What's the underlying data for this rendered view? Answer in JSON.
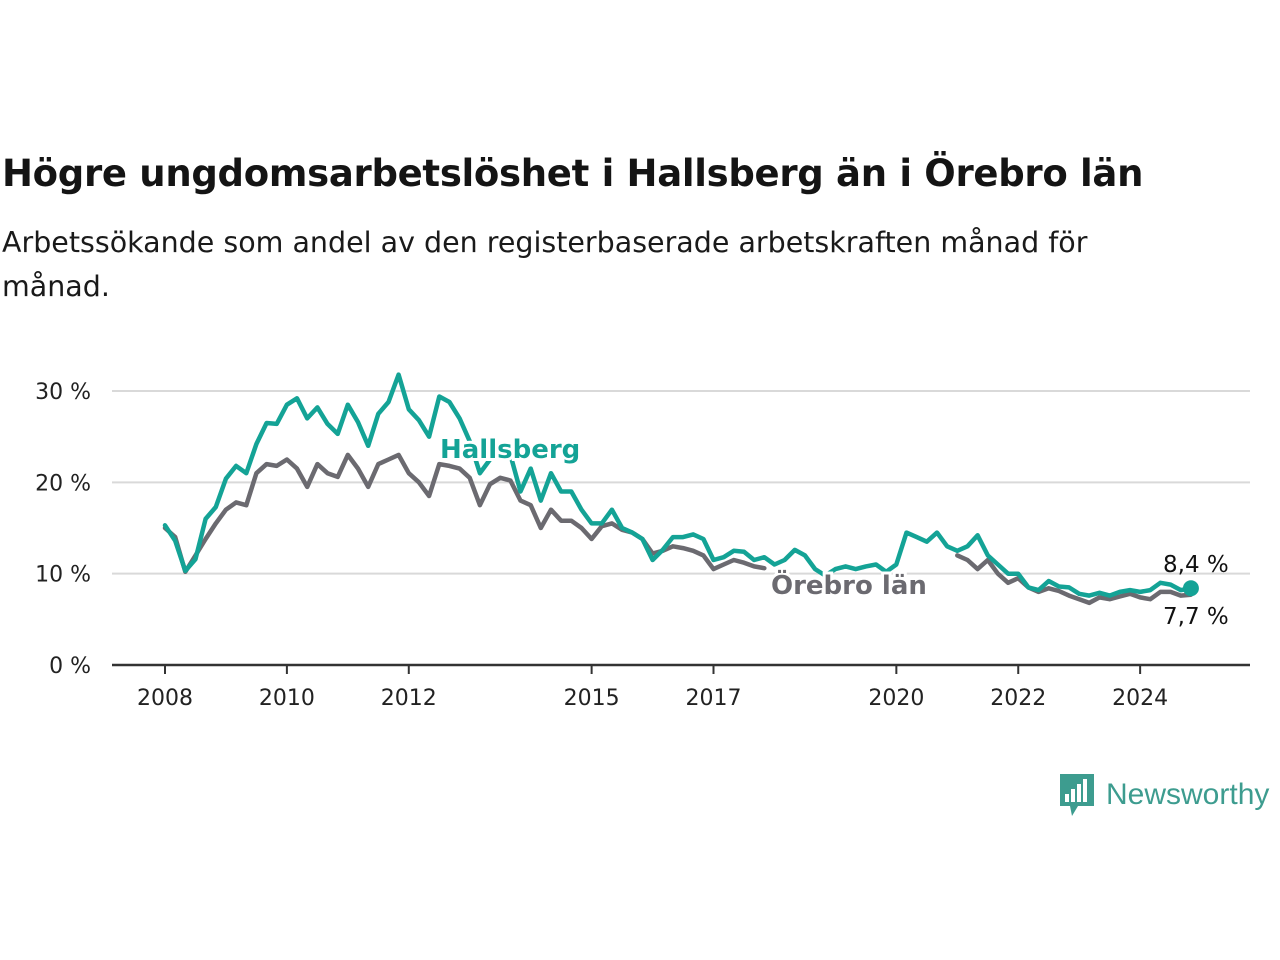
{
  "title": "Högre ungdomsarbetslöshet i Hallsberg än i Örebro län",
  "subtitle": "Arbetssökande som andel av den registerbaserade arbetskraften månad för månad.",
  "brand": {
    "name": "Newsworthy",
    "color": "#3d9c8f",
    "icon": "newsworthy-bar-chart-icon"
  },
  "chart_data": {
    "type": "line",
    "x_ticks": [
      "2008",
      "2010",
      "2012",
      "2015",
      "2017",
      "2020",
      "2022",
      "2024"
    ],
    "y_ticks": [
      "0 %",
      "10 %",
      "20 %",
      "30 %"
    ],
    "ylim": [
      0,
      30
    ],
    "xlim": [
      "2008-01",
      "2024-12"
    ],
    "grid": true,
    "series": [
      {
        "name": "Hallsberg",
        "color": "#14a396",
        "end_label": "8,4 %",
        "points": [
          [
            "2008-01",
            15.3
          ],
          [
            "2008-03",
            13.6
          ],
          [
            "2008-05",
            10.3
          ],
          [
            "2008-07",
            11.6
          ],
          [
            "2008-09",
            16.0
          ],
          [
            "2008-11",
            17.3
          ],
          [
            "2009-01",
            20.4
          ],
          [
            "2009-03",
            21.8
          ],
          [
            "2009-05",
            21.0
          ],
          [
            "2009-07",
            24.2
          ],
          [
            "2009-09",
            26.5
          ],
          [
            "2009-11",
            26.4
          ],
          [
            "2010-01",
            28.5
          ],
          [
            "2010-03",
            29.2
          ],
          [
            "2010-05",
            27.0
          ],
          [
            "2010-07",
            28.2
          ],
          [
            "2010-09",
            26.4
          ],
          [
            "2010-11",
            25.3
          ],
          [
            "2011-01",
            28.5
          ],
          [
            "2011-03",
            26.6
          ],
          [
            "2011-05",
            24.0
          ],
          [
            "2011-07",
            27.5
          ],
          [
            "2011-09",
            28.8
          ],
          [
            "2011-11",
            31.8
          ],
          [
            "2012-01",
            28.0
          ],
          [
            "2012-03",
            26.8
          ],
          [
            "2012-05",
            25.0
          ],
          [
            "2012-07",
            29.4
          ],
          [
            "2012-09",
            28.8
          ],
          [
            "2012-11",
            27.0
          ],
          [
            "2013-01",
            24.5
          ],
          [
            "2013-03",
            21.0
          ],
          [
            "2013-05",
            22.5
          ],
          [
            "2013-07",
            24.0
          ],
          [
            "2013-09",
            23.0
          ],
          [
            "2013-11",
            19.0
          ],
          [
            "2014-01",
            21.5
          ],
          [
            "2014-03",
            18.0
          ],
          [
            "2014-05",
            21.0
          ],
          [
            "2014-07",
            19.0
          ],
          [
            "2014-09",
            19.0
          ],
          [
            "2014-11",
            17.0
          ],
          [
            "2015-01",
            15.5
          ],
          [
            "2015-03",
            15.5
          ],
          [
            "2015-05",
            17.0
          ],
          [
            "2015-07",
            15.0
          ],
          [
            "2015-09",
            14.5
          ],
          [
            "2015-11",
            13.8
          ],
          [
            "2016-01",
            11.5
          ],
          [
            "2016-03",
            12.6
          ],
          [
            "2016-05",
            14.0
          ],
          [
            "2016-07",
            14.0
          ],
          [
            "2016-09",
            14.3
          ],
          [
            "2016-11",
            13.8
          ],
          [
            "2017-01",
            11.5
          ],
          [
            "2017-03",
            11.8
          ],
          [
            "2017-05",
            12.5
          ],
          [
            "2017-07",
            12.4
          ],
          [
            "2017-09",
            11.5
          ],
          [
            "2017-11",
            11.8
          ],
          [
            "2018-01",
            11.0
          ],
          [
            "2018-03",
            11.5
          ],
          [
            "2018-05",
            12.6
          ],
          [
            "2018-07",
            12.0
          ],
          [
            "2018-09",
            10.5
          ],
          [
            "2018-11",
            9.8
          ],
          [
            "2019-01",
            10.5
          ],
          [
            "2019-03",
            10.8
          ],
          [
            "2019-05",
            10.5
          ],
          [
            "2019-07",
            10.8
          ],
          [
            "2019-09",
            11.0
          ],
          [
            "2019-11",
            10.2
          ],
          [
            "2020-01",
            11.0
          ],
          [
            "2020-03",
            14.5
          ],
          [
            "2020-05",
            14.0
          ],
          [
            "2020-07",
            13.5
          ],
          [
            "2020-09",
            14.5
          ],
          [
            "2020-11",
            13.0
          ],
          [
            "2021-01",
            12.5
          ],
          [
            "2021-03",
            13.0
          ],
          [
            "2021-05",
            14.2
          ],
          [
            "2021-07",
            12.0
          ],
          [
            "2021-09",
            11.0
          ],
          [
            "2021-11",
            10.0
          ],
          [
            "2022-01",
            10.0
          ],
          [
            "2022-03",
            8.5
          ],
          [
            "2022-05",
            8.2
          ],
          [
            "2022-07",
            9.2
          ],
          [
            "2022-09",
            8.6
          ],
          [
            "2022-11",
            8.5
          ],
          [
            "2023-01",
            7.8
          ],
          [
            "2023-03",
            7.6
          ],
          [
            "2023-05",
            7.9
          ],
          [
            "2023-07",
            7.6
          ],
          [
            "2023-09",
            8.0
          ],
          [
            "2023-11",
            8.2
          ],
          [
            "2024-01",
            8.0
          ],
          [
            "2024-03",
            8.2
          ],
          [
            "2024-05",
            9.0
          ],
          [
            "2024-07",
            8.8
          ],
          [
            "2024-09",
            8.2
          ],
          [
            "2024-11",
            8.4
          ]
        ]
      },
      {
        "name": "Örebro län",
        "color": "#6b6a70",
        "end_label": "7,7 %",
        "points": [
          [
            "2008-01",
            15.0
          ],
          [
            "2008-03",
            14.0
          ],
          [
            "2008-05",
            10.2
          ],
          [
            "2008-07",
            12.0
          ],
          [
            "2008-09",
            13.8
          ],
          [
            "2008-11",
            15.5
          ],
          [
            "2009-01",
            17.0
          ],
          [
            "2009-03",
            17.8
          ],
          [
            "2009-05",
            17.5
          ],
          [
            "2009-07",
            21.0
          ],
          [
            "2009-09",
            22.0
          ],
          [
            "2009-11",
            21.8
          ],
          [
            "2010-01",
            22.5
          ],
          [
            "2010-03",
            21.5
          ],
          [
            "2010-05",
            19.5
          ],
          [
            "2010-07",
            22.0
          ],
          [
            "2010-09",
            21.0
          ],
          [
            "2010-11",
            20.6
          ],
          [
            "2011-01",
            23.0
          ],
          [
            "2011-03",
            21.5
          ],
          [
            "2011-05",
            19.5
          ],
          [
            "2011-07",
            22.0
          ],
          [
            "2011-09",
            22.5
          ],
          [
            "2011-11",
            23.0
          ],
          [
            "2012-01",
            21.0
          ],
          [
            "2012-03",
            20.0
          ],
          [
            "2012-05",
            18.5
          ],
          [
            "2012-07",
            22.0
          ],
          [
            "2012-09",
            21.8
          ],
          [
            "2012-11",
            21.5
          ],
          [
            "2013-01",
            20.5
          ],
          [
            "2013-03",
            17.5
          ],
          [
            "2013-05",
            19.8
          ],
          [
            "2013-07",
            20.5
          ],
          [
            "2013-09",
            20.2
          ],
          [
            "2013-11",
            18.0
          ],
          [
            "2014-01",
            17.5
          ],
          [
            "2014-03",
            15.0
          ],
          [
            "2014-05",
            17.0
          ],
          [
            "2014-07",
            15.8
          ],
          [
            "2014-09",
            15.8
          ],
          [
            "2014-11",
            15.0
          ],
          [
            "2015-01",
            13.8
          ],
          [
            "2015-03",
            15.2
          ],
          [
            "2015-05",
            15.5
          ],
          [
            "2015-07",
            14.8
          ],
          [
            "2015-09",
            14.5
          ],
          [
            "2015-11",
            13.8
          ],
          [
            "2016-01",
            12.2
          ],
          [
            "2016-03",
            12.5
          ],
          [
            "2016-05",
            13.0
          ],
          [
            "2016-07",
            12.8
          ],
          [
            "2016-09",
            12.5
          ],
          [
            "2016-11",
            12.0
          ],
          [
            "2017-01",
            10.5
          ],
          [
            "2017-03",
            11.0
          ],
          [
            "2017-05",
            11.5
          ],
          [
            "2017-07",
            11.2
          ],
          [
            "2017-09",
            10.8
          ],
          [
            "2017-11",
            10.6
          ]
        ],
        "tail_points": [
          [
            "2021-01",
            12.0
          ],
          [
            "2021-03",
            11.5
          ],
          [
            "2021-05",
            10.5
          ],
          [
            "2021-07",
            11.5
          ],
          [
            "2021-09",
            10.0
          ],
          [
            "2021-11",
            9.0
          ],
          [
            "2022-01",
            9.5
          ],
          [
            "2022-03",
            8.5
          ],
          [
            "2022-05",
            8.0
          ],
          [
            "2022-07",
            8.4
          ],
          [
            "2022-09",
            8.1
          ],
          [
            "2022-11",
            7.6
          ],
          [
            "2023-01",
            7.2
          ],
          [
            "2023-03",
            6.8
          ],
          [
            "2023-05",
            7.4
          ],
          [
            "2023-07",
            7.2
          ],
          [
            "2023-09",
            7.5
          ],
          [
            "2023-11",
            7.8
          ],
          [
            "2024-01",
            7.4
          ],
          [
            "2024-03",
            7.2
          ],
          [
            "2024-05",
            8.0
          ],
          [
            "2024-07",
            8.0
          ],
          [
            "2024-09",
            7.6
          ],
          [
            "2024-11",
            7.7
          ]
        ]
      }
    ]
  }
}
